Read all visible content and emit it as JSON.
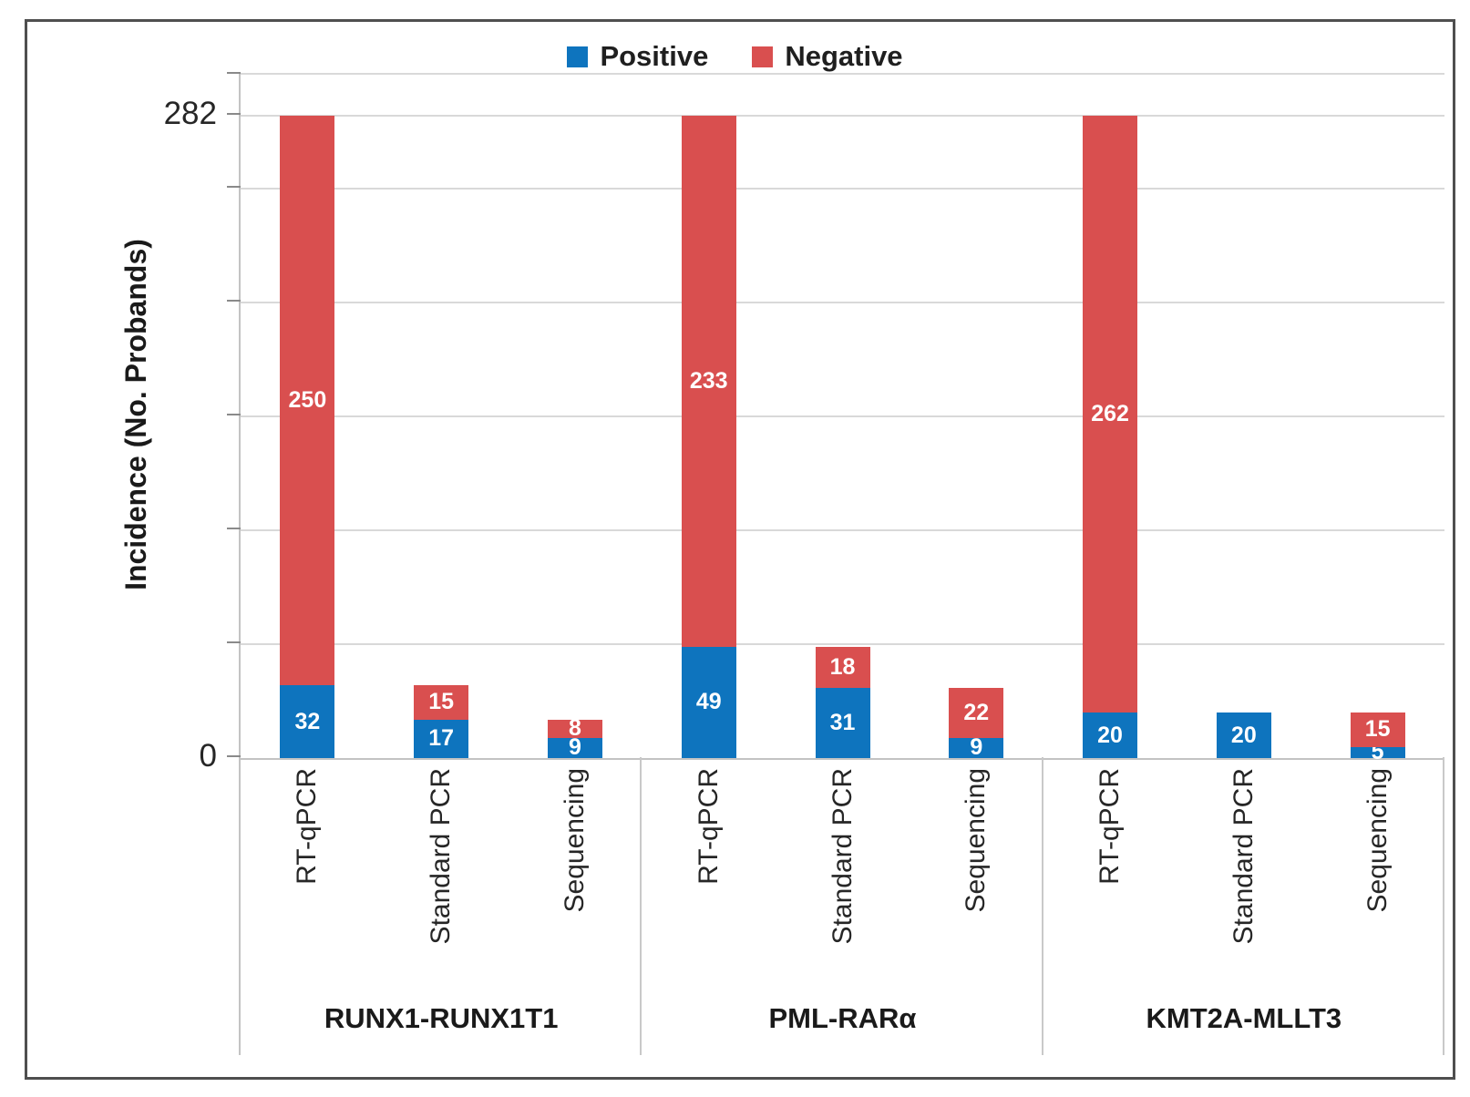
{
  "chart_data": {
    "type": "bar",
    "stacked": true,
    "title": "",
    "ylabel": "Incidence (No. Probands)",
    "xlabel": "",
    "ylim": [
      0,
      300
    ],
    "grid": true,
    "gridline_values": [
      50,
      100,
      150,
      200,
      250,
      282
    ],
    "axis_tick_values": [
      0,
      50,
      100,
      150,
      200,
      250,
      282,
      300
    ],
    "y_tick_labels": {
      "zero": "0",
      "max": "282"
    },
    "legend_position": "top-center",
    "series": [
      {
        "name": "Positive",
        "color": "#0e74be"
      },
      {
        "name": "Negative",
        "color": "#d94f4f"
      }
    ],
    "groups": [
      {
        "label": "RUNX1-RUNX1T1",
        "bars": [
          {
            "method": "RT-qPCR",
            "positive": 32,
            "negative": 250
          },
          {
            "method": "Standard PCR",
            "positive": 17,
            "negative": 15
          },
          {
            "method": "Sequencing",
            "positive": 9,
            "negative": 8
          }
        ]
      },
      {
        "label": "PML-RARα",
        "bars": [
          {
            "method": "RT-qPCR",
            "positive": 49,
            "negative": 233
          },
          {
            "method": "Standard PCR",
            "positive": 31,
            "negative": 18
          },
          {
            "method": "Sequencing",
            "positive": 9,
            "negative": 22
          }
        ]
      },
      {
        "label": "KMT2A-MLLT3",
        "bars": [
          {
            "method": "RT-qPCR",
            "positive": 20,
            "negative": 262
          },
          {
            "method": "Standard PCR",
            "positive": 20,
            "negative": 0
          },
          {
            "method": "Sequencing",
            "positive": 5,
            "negative": 15
          }
        ]
      }
    ]
  },
  "colors": {
    "positive": "#0e74be",
    "negative": "#d94f4f",
    "gridline": "#d9d9d9",
    "axis_line": "#c3c3c3",
    "frame_border": "#4f4f4f",
    "value_label_text": "#ffffff",
    "axis_text": "#262626"
  }
}
